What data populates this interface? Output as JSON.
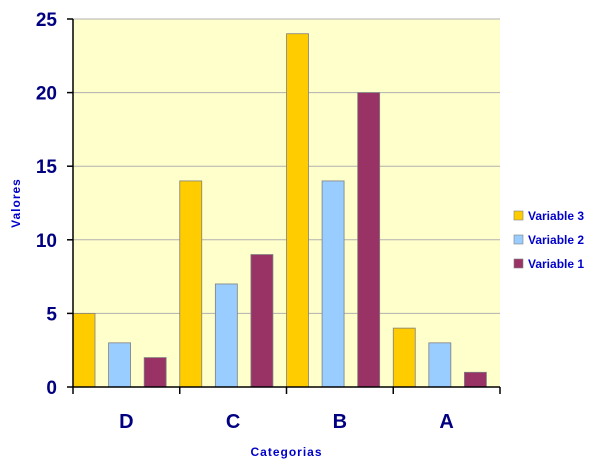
{
  "chart_data": {
    "type": "bar",
    "categories": [
      "D",
      "C",
      "B",
      "A"
    ],
    "series": [
      {
        "name": "Variable 3",
        "values": [
          5,
          14,
          24,
          4
        ],
        "color": "#FFCC00"
      },
      {
        "name": "Variable 2",
        "values": [
          3,
          7,
          14,
          3
        ],
        "color": "#99CCFF"
      },
      {
        "name": "Variable 1",
        "values": [
          2,
          9,
          20,
          1
        ],
        "color": "#993366"
      }
    ],
    "title": "",
    "xlabel": "Categorias",
    "ylabel": "Valores",
    "ylim": [
      0,
      25
    ],
    "yticks": [
      "0",
      "5",
      "10",
      "15",
      "20",
      "25"
    ],
    "grid": true,
    "legend_position": "right",
    "colors": {
      "plot_background": "#FFFFCC",
      "gridline": "#B0B0B0",
      "axis_text": "#000080",
      "axis_label": "#0000CC",
      "legend_text": "#0000CC"
    }
  }
}
